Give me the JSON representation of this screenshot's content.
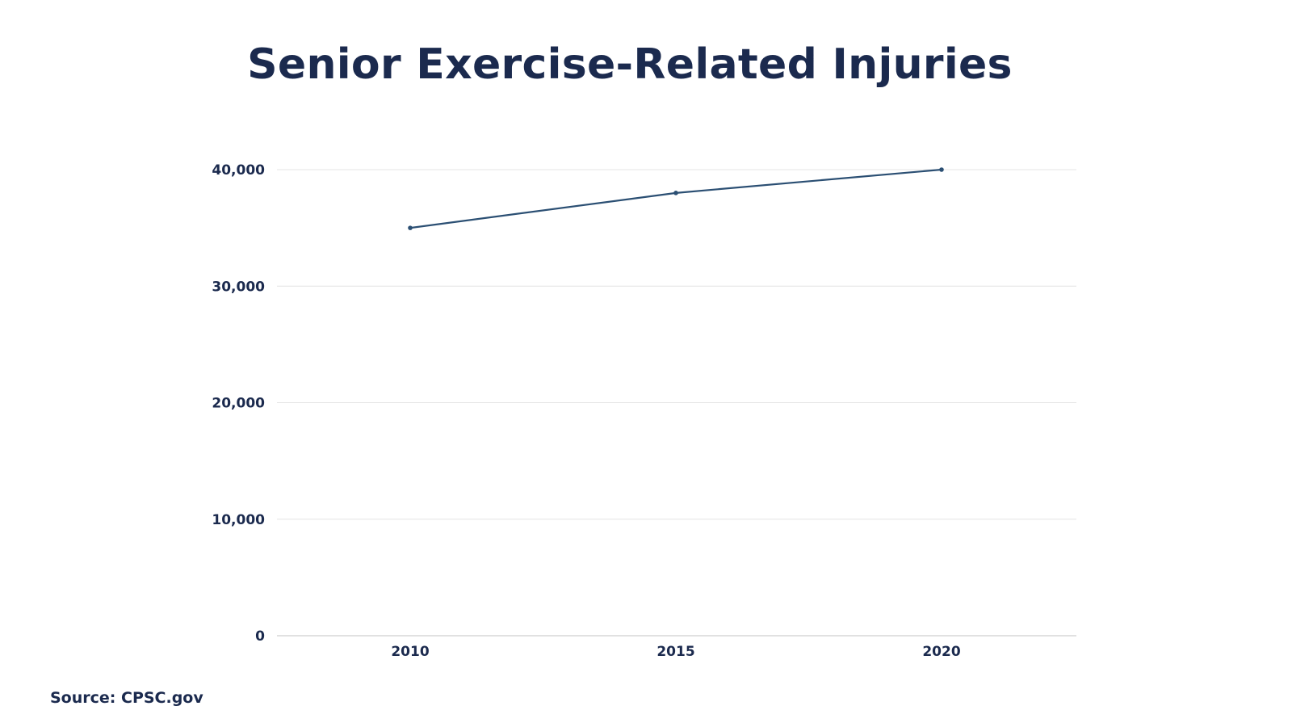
{
  "chart_data": {
    "type": "line",
    "title": "Senior Exercise-Related Injuries",
    "xlabel": "",
    "ylabel": "",
    "x": [
      "2010",
      "2015",
      "2020"
    ],
    "series": [
      {
        "values": [
          35000,
          38000,
          40000
        ]
      }
    ],
    "yticks": [
      0,
      10000,
      20000,
      30000,
      40000
    ],
    "ytick_labels": [
      "0",
      "10,000",
      "20,000",
      "30,000",
      "40,000"
    ],
    "ylim": [
      0,
      40000
    ],
    "grid": true,
    "legend": "none",
    "line_color": "#2b4f73",
    "grid_color": "#e4e4e4",
    "text_color": "#1b2a4e"
  },
  "source": "Source: CPSC.gov"
}
